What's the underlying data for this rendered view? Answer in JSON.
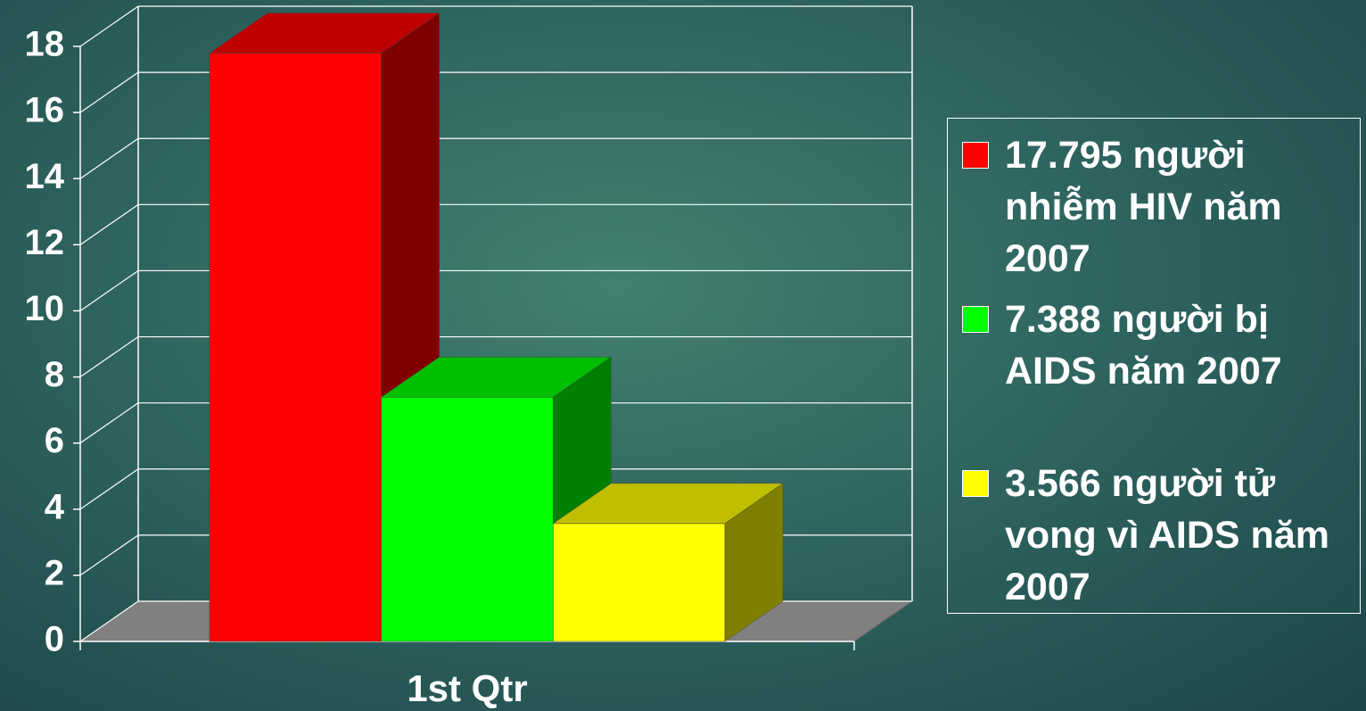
{
  "chart_data": {
    "type": "bar3d",
    "categories": [
      "1st Qtr"
    ],
    "series": [
      {
        "name": "17.795 người nhiễm HIV năm 2007",
        "color": "#ff0000",
        "values": [
          17.795
        ]
      },
      {
        "name": "7.388 người bị AIDS năm 2007",
        "color": "#00ff00",
        "values": [
          7.388
        ]
      },
      {
        "name": "3.566 người tử vong vì AIDS năm 2007",
        "color": "#ffff00",
        "values": [
          3.566
        ]
      }
    ],
    "ylim": [
      0,
      18
    ],
    "yticks": [
      0,
      2,
      4,
      6,
      8,
      10,
      12,
      14,
      16,
      18
    ],
    "grid": true,
    "legend": "right"
  }
}
